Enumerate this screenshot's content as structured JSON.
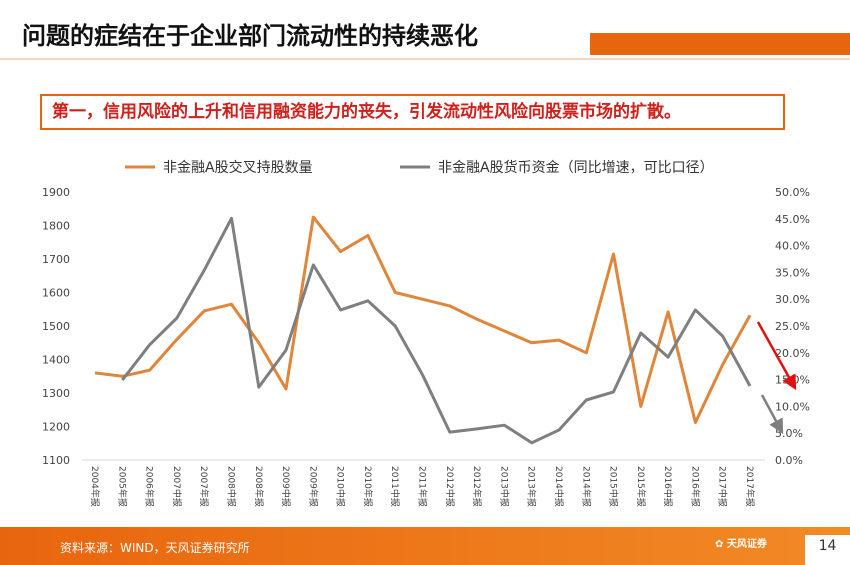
{
  "header": {
    "title": "问题的症结在于企业部门流动性的持续恶化",
    "subtitle": "第一，信用风险的上升和信用融资能力的丧失，引发流动性风险向股票市场的扩散。"
  },
  "footer": {
    "source": "资料来源：WIND，天风证券研究所",
    "logo_text": "天风证券",
    "page": "14"
  },
  "chart_data": {
    "type": "line",
    "categories": [
      "2004年报",
      "2005年报",
      "2006年报",
      "2007中报",
      "2007年报",
      "2008中报",
      "2008年报",
      "2009中报",
      "2009年报",
      "2010中报",
      "2010年报",
      "2011中报",
      "2011年报",
      "2012中报",
      "2012年报",
      "2013中报",
      "2013年报",
      "2014中报",
      "2014年报",
      "2015中报",
      "2015年报",
      "2016中报",
      "2016年报",
      "2017中报",
      "2017年报"
    ],
    "series": [
      {
        "name": "非金融A股交叉持股数量",
        "axis": "left",
        "color": "#e0853a",
        "values": [
          1360,
          1350,
          1368,
          1460,
          1545,
          1565,
          1450,
          1312,
          1825,
          1722,
          1770,
          1600,
          1580,
          1560,
          1520,
          1485,
          1450,
          1458,
          1420,
          1715,
          1260,
          1542,
          1212,
          1385,
          1532
        ]
      },
      {
        "name": "非金融A股货币资金（同比增速，可比口径）",
        "axis": "right",
        "color": "#7f7f7f",
        "values": [
          null,
          14.9,
          21.5,
          26.5,
          35.4,
          45.1,
          13.6,
          20.5,
          36.4,
          28.0,
          29.7,
          25.0,
          15.9,
          5.2,
          5.8,
          6.5,
          3.2,
          5.6,
          11.2,
          12.7,
          23.7,
          19.2,
          28.0,
          23.1,
          13.8
        ]
      }
    ],
    "left_axis": {
      "ylim": [
        1100,
        1900
      ],
      "ticks": [
        "1100",
        "1200",
        "1300",
        "1400",
        "1500",
        "1600",
        "1700",
        "1800",
        "1900"
      ]
    },
    "right_axis": {
      "ylim": [
        0,
        50
      ],
      "ticks": [
        "0.0%",
        "5.0%",
        "10.0%",
        "15.0%",
        "20.0%",
        "25.0%",
        "30.0%",
        "35.0%",
        "40.0%",
        "45.0%",
        "50.0%"
      ]
    },
    "legend_position": "top",
    "annotations": [
      {
        "type": "arrow",
        "color": "#e01010",
        "series": "非金融A股交叉持股数量",
        "direction": "down"
      },
      {
        "type": "arrow",
        "color": "#7f7f7f",
        "series": "非金融A股货币资金（同比增速，可比口径）",
        "direction": "down"
      }
    ]
  }
}
